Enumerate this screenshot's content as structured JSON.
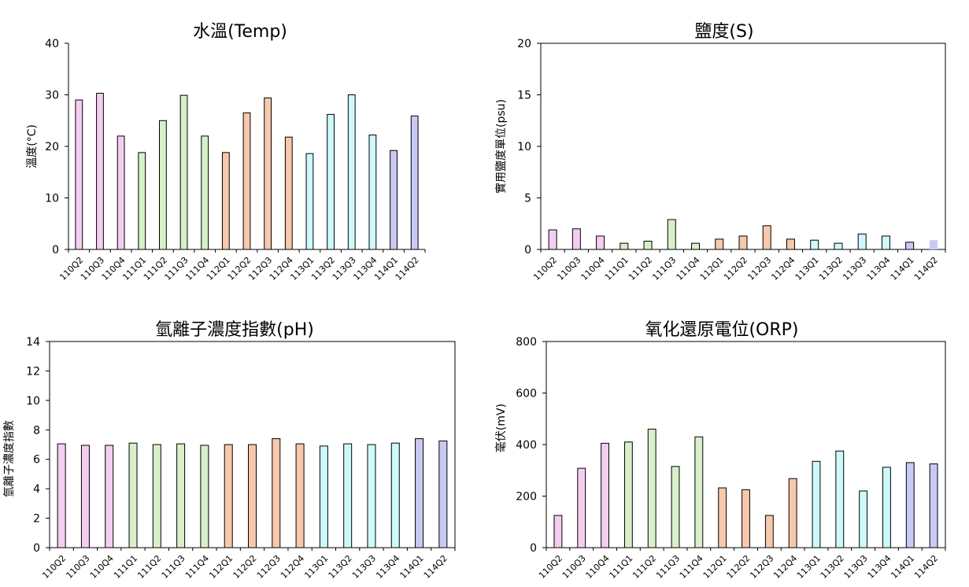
{
  "categories": [
    "110Q2",
    "110Q3",
    "110Q4",
    "111Q1",
    "111Q2",
    "111Q3",
    "111Q4",
    "112Q1",
    "112Q2",
    "112Q3",
    "112Q4",
    "113Q1",
    "113Q2",
    "113Q3",
    "113Q4",
    "114Q1",
    "114Q2"
  ],
  "colors": [
    "#f4cdf1",
    "#f4cdf1",
    "#f4cdf1",
    "#d7f0c8",
    "#d7f0c8",
    "#d7f0c8",
    "#d7f0c8",
    "#f8c8aa",
    "#f8c8aa",
    "#f8c8aa",
    "#f8c8aa",
    "#ccfafa",
    "#ccfafa",
    "#ccfafa",
    "#ccfafa",
    "#c9c9f6",
    "#c9c9f6"
  ],
  "chart_data": [
    {
      "type": "bar",
      "title": "水溫(Temp)",
      "ylabel": "溫度(°C)",
      "ylim": [
        0,
        40
      ],
      "yticks": [
        "0",
        "10",
        "20",
        "30",
        "40"
      ],
      "values": [
        29.0,
        30.3,
        22.0,
        18.8,
        25.0,
        29.9,
        22.0,
        18.8,
        26.5,
        29.4,
        21.8,
        18.6,
        26.2,
        30.0,
        22.2,
        19.2,
        25.9
      ]
    },
    {
      "type": "bar",
      "title": "鹽度(S)",
      "ylabel": "實用鹽度單位(psu)",
      "ylim": [
        0,
        20
      ],
      "yticks": [
        "0",
        "5",
        "10",
        "15",
        "20"
      ],
      "values": [
        1.9,
        2.0,
        1.3,
        0.6,
        0.8,
        2.9,
        0.6,
        1.0,
        1.3,
        2.3,
        1.0,
        0.9,
        0.6,
        1.5,
        1.3,
        0.7,
        0.9
      ]
    },
    {
      "type": "bar",
      "title": "氫離子濃度指數(pH)",
      "ylabel": "氫離子濃度指數",
      "ylim": [
        0,
        14
      ],
      "yticks": [
        "0",
        "2",
        "4",
        "6",
        "8",
        "10",
        "12",
        "14"
      ],
      "values": [
        7.05,
        6.95,
        6.95,
        7.1,
        7.0,
        7.05,
        6.95,
        7.0,
        7.0,
        7.4,
        7.05,
        6.9,
        7.05,
        7.0,
        7.1,
        7.4,
        7.25
      ]
    },
    {
      "type": "bar",
      "title": "氧化還原電位(ORP)",
      "ylabel": "毫伏(mV)",
      "ylim": [
        0,
        800
      ],
      "yticks": [
        "0",
        "200",
        "400",
        "600",
        "800"
      ],
      "values": [
        125,
        308,
        405,
        410,
        460,
        315,
        430,
        232,
        225,
        125,
        268,
        335,
        375,
        220,
        312,
        330,
        325
      ]
    }
  ]
}
